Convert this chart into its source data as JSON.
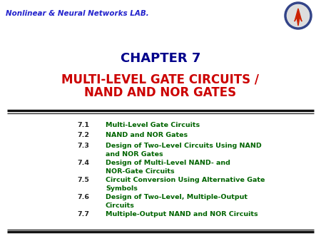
{
  "bg_color": "#ffffff",
  "header_text": "Nonlinear & Neural Networks LAB.",
  "header_color": "#2222cc",
  "header_fontsize": 7.5,
  "title1": "CHAPTER 7",
  "title1_color": "#00008B",
  "title1_fontsize": 13,
  "title2_line1": "MULTI-LEVEL GATE CIRCUITS /",
  "title2_line2": "NAND AND NOR GATES",
  "title2_color": "#cc0000",
  "title2_fontsize": 12,
  "number_color": "#222222",
  "content_color": "#006400",
  "content_fontsize": 6.8,
  "items": [
    {
      "num": "7.1",
      "lines": [
        "Multi-Level Gate Circuits"
      ]
    },
    {
      "num": "7.2",
      "lines": [
        "NAND and NOR Gates"
      ]
    },
    {
      "num": "7.3",
      "lines": [
        "Design of Two-Level Circuits Using NAND",
        "and NOR Gates"
      ]
    },
    {
      "num": "7.4",
      "lines": [
        "Design of Multi-Level NAND- and",
        "NOR-Gate Circuits"
      ]
    },
    {
      "num": "7.5",
      "lines": [
        "Circuit Conversion Using Alternative Gate",
        "Symbols"
      ]
    },
    {
      "num": "7.6",
      "lines": [
        "Design of Two-Level, Multiple-Output",
        "Circuits"
      ]
    },
    {
      "num": "7.7",
      "lines": [
        "Multiple-Output NAND and NOR Circuits"
      ]
    }
  ]
}
